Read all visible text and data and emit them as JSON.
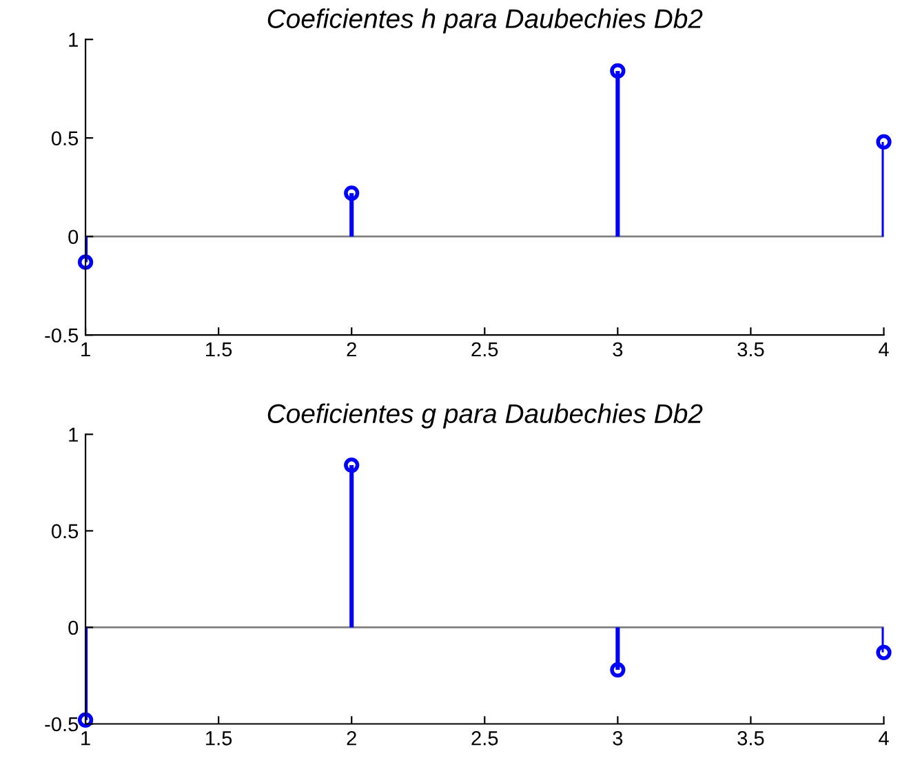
{
  "chart_data": [
    {
      "type": "lollipop",
      "title": "Coeficientes h para Daubechies Db2",
      "x": [
        1,
        2,
        3,
        4
      ],
      "values": [
        -0.13,
        0.22,
        0.84,
        0.48
      ],
      "ref_lines": [
        {
          "axis": "y",
          "value": 0,
          "color": "#808080"
        }
      ],
      "color": "#0000ff",
      "marker": "circle",
      "xlim": [
        1,
        4
      ],
      "xticks": [
        1,
        1.5,
        2,
        2.5,
        3,
        3.5,
        4
      ],
      "ylim": [
        -0.5,
        1
      ],
      "yticks": [
        -0.5,
        0,
        0.5,
        1
      ],
      "grid": false
    },
    {
      "type": "lollipop",
      "title": "Coeficientes g para Daubechies Db2",
      "x": [
        1,
        2,
        3,
        4
      ],
      "values": [
        -0.48,
        0.84,
        -0.22,
        -0.13
      ],
      "ref_lines": [
        {
          "axis": "y",
          "value": 0,
          "color": "#808080"
        }
      ],
      "color": "#0000ff",
      "marker": "circle",
      "xlim": [
        1,
        4
      ],
      "xticks": [
        1,
        1.5,
        2,
        2.5,
        3,
        3.5,
        4
      ],
      "ylim": [
        -0.5,
        1
      ],
      "yticks": [
        -0.5,
        0,
        0.5,
        1
      ],
      "grid": false
    }
  ]
}
